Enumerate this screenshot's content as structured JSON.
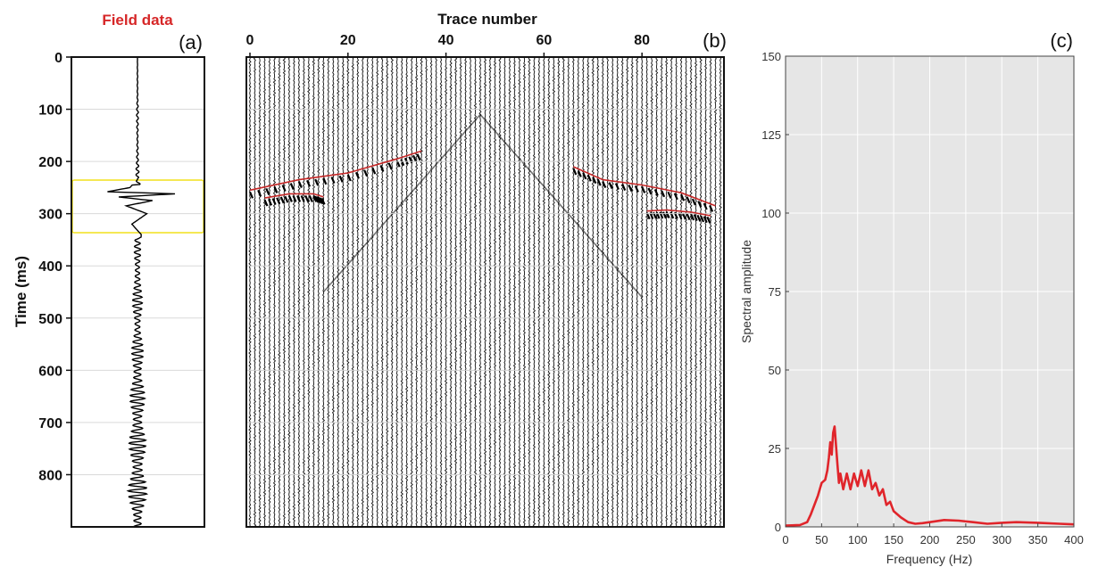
{
  "figure": {
    "panel_a": {
      "title": "Field data",
      "label": "(a)",
      "ylabel": "Time (ms)",
      "yticks": [
        "0",
        "100",
        "200",
        "300",
        "400",
        "500",
        "600",
        "700",
        "800"
      ],
      "highlight_window_ms": [
        238,
        338
      ],
      "colors": {
        "title": "#d62728",
        "highlight": "#f2e11b",
        "trace": "#000000"
      }
    },
    "panel_b": {
      "title": "Trace number",
      "label": "(b)",
      "xticks": [
        "0",
        "20",
        "40",
        "60",
        "80"
      ],
      "picked_events_color": "#c62828"
    },
    "panel_c": {
      "label": "(c)",
      "xlabel": "Frequency (Hz)",
      "ylabel": "Spectral amplitude",
      "xticks": [
        "0",
        "50",
        "100",
        "150",
        "200",
        "250",
        "300",
        "350",
        "400"
      ],
      "yticks": [
        "0",
        "25",
        "50",
        "75",
        "100",
        "125",
        "150"
      ],
      "line_color": "#e0252b",
      "background": "#e6e6e6"
    }
  },
  "chart_data": [
    {
      "type": "line",
      "name": "panel-a-single-trace",
      "title": "Field data",
      "ylabel": "Time (ms)",
      "ylim": [
        0,
        900
      ],
      "y_reversed": true,
      "x": [
        0,
        100,
        200,
        230,
        250,
        258,
        262,
        268,
        275,
        285,
        300,
        320,
        340,
        400,
        430,
        500,
        550,
        600,
        700,
        800,
        860,
        900
      ],
      "y": [
        0.0,
        0.02,
        0.02,
        0.05,
        -0.2,
        -0.8,
        1.0,
        -0.5,
        0.4,
        -0.3,
        0.25,
        -0.15,
        0.1,
        0.05,
        0.12,
        0.1,
        0.12,
        0.15,
        0.18,
        0.2,
        0.22,
        0.1
      ]
    },
    {
      "type": "heatmap",
      "name": "panel-b-shot-gather",
      "title": "Trace number",
      "ylabel": "Time (ms)",
      "xlim": [
        0,
        96
      ],
      "ylim": [
        0,
        900
      ],
      "y_reversed": true,
      "grid": true,
      "events": [
        {
          "name": "left-upper",
          "x": [
            0,
            10,
            20,
            30,
            35
          ],
          "y": [
            255,
            235,
            222,
            195,
            180
          ]
        },
        {
          "name": "left-lower",
          "x": [
            3,
            8,
            13,
            15
          ],
          "y": [
            270,
            262,
            262,
            268
          ]
        },
        {
          "name": "right-upper",
          "x": [
            66,
            72,
            80,
            88,
            95
          ],
          "y": [
            210,
            235,
            245,
            260,
            285
          ]
        },
        {
          "name": "right-lower",
          "x": [
            81,
            85,
            90,
            94
          ],
          "y": [
            295,
            293,
            297,
            304
          ]
        }
      ]
    },
    {
      "type": "line",
      "name": "panel-c-spectrum",
      "xlabel": "Frequency (Hz)",
      "ylabel": "Spectral amplitude",
      "xlim": [
        0,
        400
      ],
      "ylim": [
        0,
        150
      ],
      "grid": true,
      "x": [
        0,
        20,
        30,
        35,
        40,
        45,
        50,
        55,
        58,
        60,
        62,
        64,
        66,
        68,
        70,
        72,
        74,
        76,
        80,
        85,
        90,
        95,
        100,
        105,
        110,
        115,
        120,
        125,
        130,
        135,
        140,
        145,
        150,
        160,
        170,
        180,
        190,
        200,
        220,
        240,
        260,
        280,
        300,
        320,
        350,
        380,
        400
      ],
      "y": [
        0.4,
        0.6,
        1.5,
        4,
        7,
        10,
        14,
        15,
        18,
        22,
        27,
        23,
        30,
        32,
        26,
        20,
        14,
        17,
        12,
        17,
        12,
        17,
        13,
        18,
        13,
        18,
        12,
        14,
        10,
        12,
        7,
        8,
        5,
        3,
        1.5,
        1,
        1.2,
        1.5,
        2.2,
        2,
        1.5,
        1,
        1.3,
        1.5,
        1.3,
        1,
        0.8
      ]
    }
  ]
}
